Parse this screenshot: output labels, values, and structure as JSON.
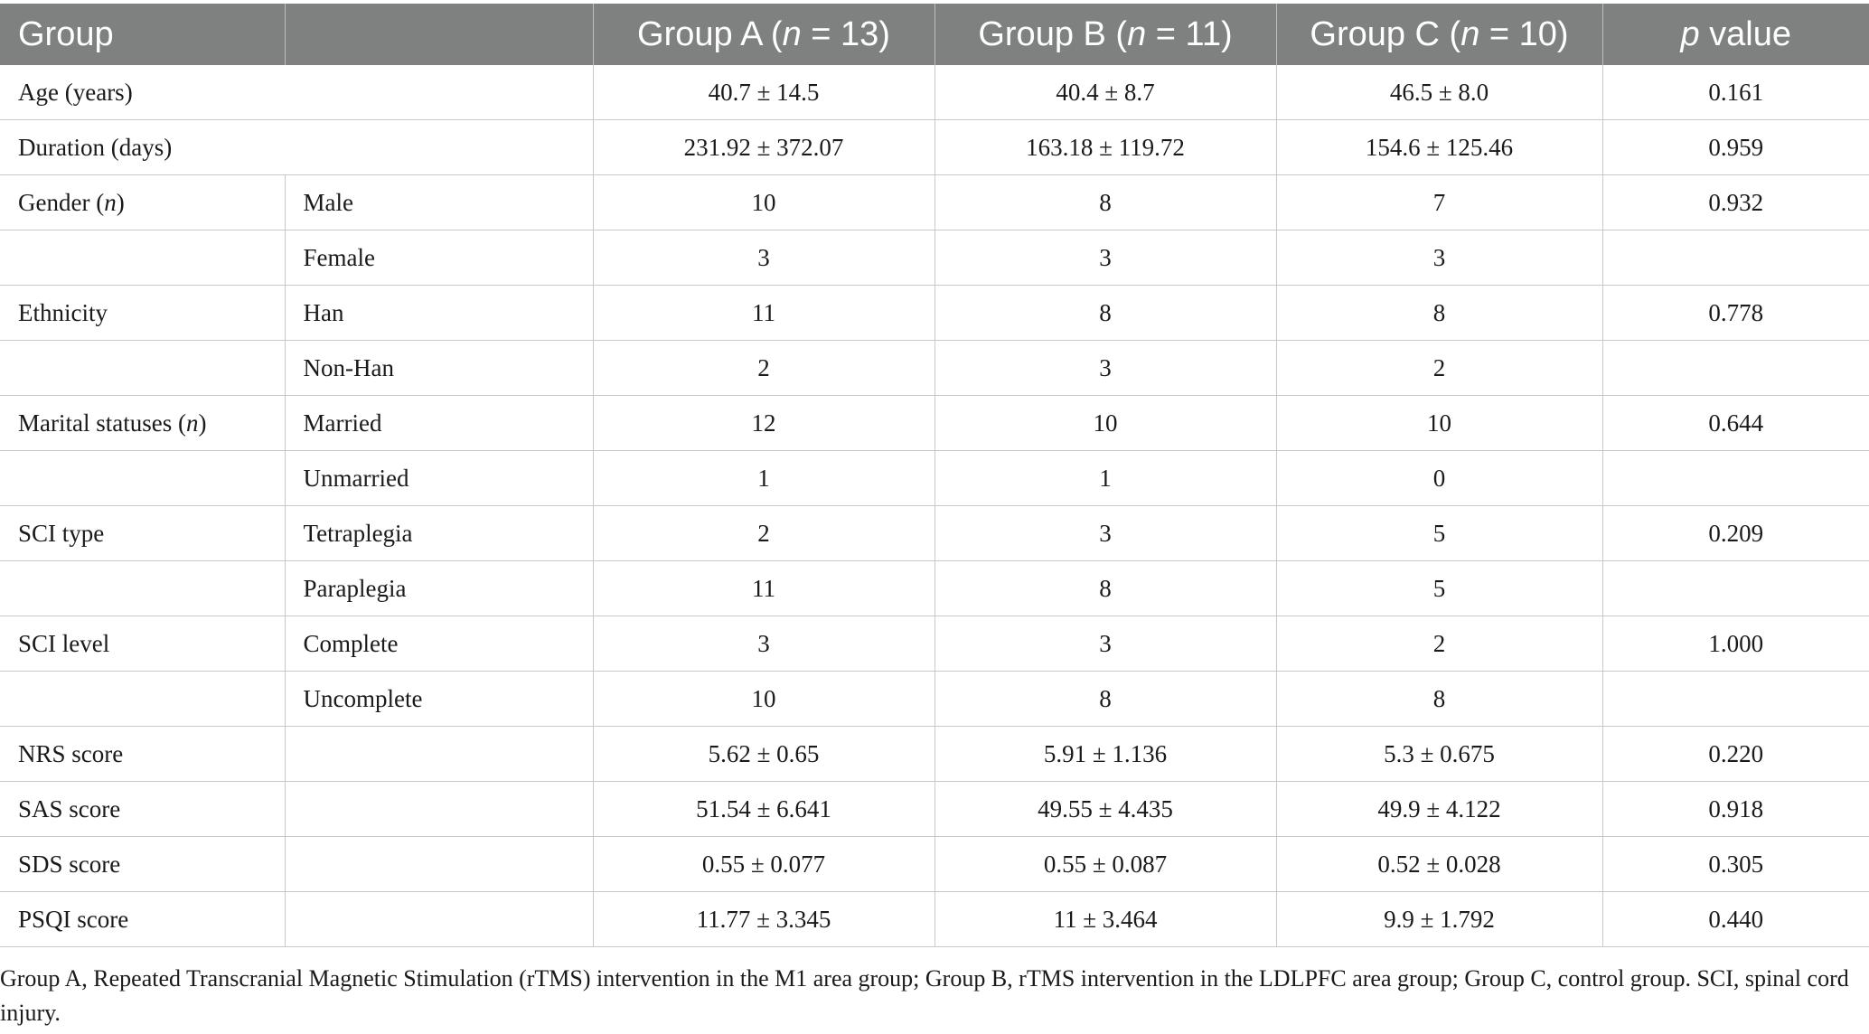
{
  "header": {
    "group": "Group",
    "blank": "",
    "group_a_prefix": "Group A (",
    "group_a_n": "n",
    "group_a_suffix": " = 13)",
    "group_b_prefix": "Group B (",
    "group_b_n": "n",
    "group_b_suffix": " = 11)",
    "group_c_prefix": "Group C (",
    "group_c_n": "n",
    "group_c_suffix": " = 10)",
    "p_italic": "p",
    "p_suffix": " value"
  },
  "rows": [
    {
      "label": "Age (years)",
      "sub": "",
      "a": "40.7 ± 14.5",
      "b": "40.4 ± 8.7",
      "c": "46.5 ± 8.0",
      "p": "0.161"
    },
    {
      "label": "Duration (days)",
      "sub": "",
      "a": "231.92 ± 372.07",
      "b": "163.18 ± 119.72",
      "c": "154.6 ± 125.46",
      "p": "0.959"
    },
    {
      "label_prefix": "Gender (",
      "label_italic": "n",
      "label_suffix": ")",
      "sub": "Male",
      "a": "10",
      "b": "8",
      "c": "7",
      "p": "0.932"
    },
    {
      "label": "",
      "sub": "Female",
      "a": "3",
      "b": "3",
      "c": "3",
      "p": ""
    },
    {
      "label": "Ethnicity",
      "sub": "Han",
      "a": "11",
      "b": "8",
      "c": "8",
      "p": "0.778"
    },
    {
      "label": "",
      "sub": "Non-Han",
      "a": "2",
      "b": "3",
      "c": "2",
      "p": ""
    },
    {
      "label_prefix": "Marital statuses (",
      "label_italic": "n",
      "label_suffix": ")",
      "sub": "Married",
      "a": "12",
      "b": "10",
      "c": "10",
      "p": "0.644"
    },
    {
      "label": "",
      "sub": "Unmarried",
      "a": "1",
      "b": "1",
      "c": "0",
      "p": ""
    },
    {
      "label": "SCI type",
      "sub": "Tetraplegia",
      "a": "2",
      "b": "3",
      "c": "5",
      "p": "0.209"
    },
    {
      "label": "",
      "sub": "Paraplegia",
      "a": "11",
      "b": "8",
      "c": "5",
      "p": ""
    },
    {
      "label": "SCI level",
      "sub": "Complete",
      "a": "3",
      "b": "3",
      "c": "2",
      "p": "1.000"
    },
    {
      "label": "",
      "sub": "Uncomplete",
      "a": "10",
      "b": "8",
      "c": "8",
      "p": ""
    },
    {
      "label": "NRS score",
      "sub": "",
      "a": "5.62 ± 0.65",
      "b": "5.91 ± 1.136",
      "c": "5.3 ± 0.675",
      "p": "0.220"
    },
    {
      "label": "SAS score",
      "sub": "",
      "a": "51.54 ± 6.641",
      "b": "49.55 ± 4.435",
      "c": "49.9 ± 4.122",
      "p": "0.918"
    },
    {
      "label": "SDS score",
      "sub": "",
      "a": "0.55 ± 0.077",
      "b": "0.55 ± 0.087",
      "c": "0.52 ± 0.028",
      "p": "0.305"
    },
    {
      "label": "PSQI score",
      "sub": "",
      "a": "11.77 ± 3.345",
      "b": "11 ± 3.464",
      "c": "9.9 ± 1.792",
      "p": "0.440"
    }
  ],
  "footnote": "Group A, Repeated Transcranial Magnetic Stimulation (rTMS) intervention in the M1 area group; Group B, rTMS intervention in the LDLPFC area group; Group C, control group. SCI, spinal cord injury.",
  "colors": {
    "header_bg": "#7f8180",
    "header_text": "#ffffff",
    "grid": "#c8c8c8"
  }
}
